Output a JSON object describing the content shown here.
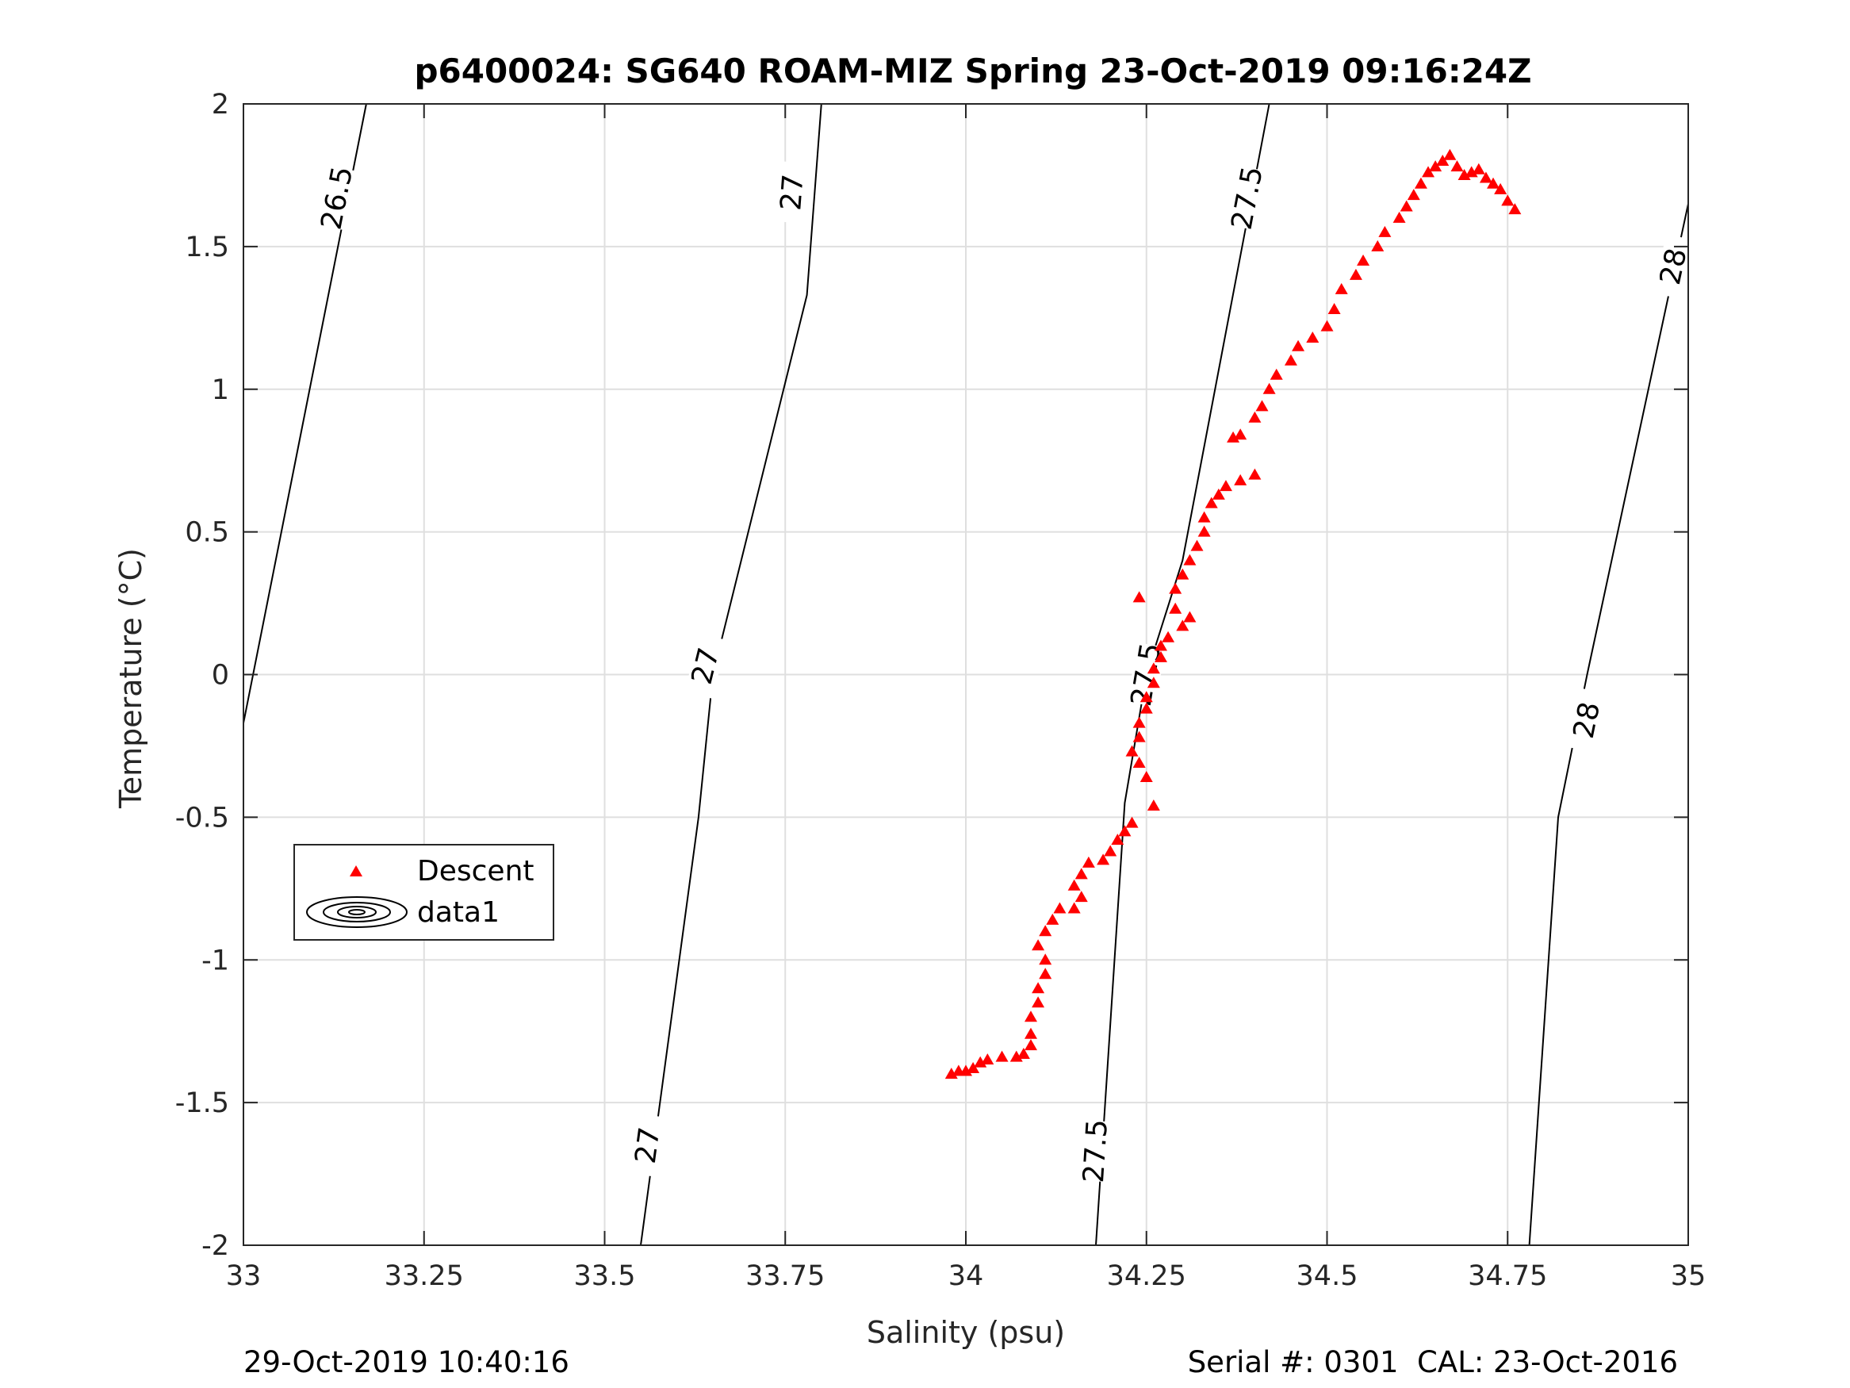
{
  "chart_data": {
    "type": "scatter",
    "title": "p6400024: SG640 ROAM-MIZ Spring 23-Oct-2019 09:16:24Z",
    "xlabel": "Salinity (psu)",
    "ylabel": "Temperature (°C)",
    "xlim": [
      33,
      35
    ],
    "ylim": [
      -2,
      2
    ],
    "x_ticks": [
      33,
      33.25,
      33.5,
      33.75,
      34,
      34.25,
      34.5,
      34.75,
      35
    ],
    "x_tick_labels": [
      "33",
      "33.25",
      "33.5",
      "33.75",
      "34",
      "34.25",
      "34.5",
      "34.75",
      "35"
    ],
    "y_ticks": [
      -2,
      -1.5,
      -1,
      -0.5,
      0,
      0.5,
      1,
      1.5,
      2
    ],
    "y_tick_labels": [
      "-2",
      "-1.5",
      "-1",
      "-0.5",
      "0",
      "0.5",
      "1",
      "1.5",
      "2"
    ],
    "grid": true,
    "legend_position": "lower-left",
    "series": [
      {
        "name": "Descent",
        "marker": "triangle",
        "color": "#ff0000",
        "points": [
          [
            33.98,
            -1.4
          ],
          [
            33.99,
            -1.39
          ],
          [
            34.0,
            -1.39
          ],
          [
            34.01,
            -1.38
          ],
          [
            34.02,
            -1.36
          ],
          [
            34.03,
            -1.35
          ],
          [
            34.05,
            -1.34
          ],
          [
            34.07,
            -1.34
          ],
          [
            34.08,
            -1.33
          ],
          [
            34.09,
            -1.3
          ],
          [
            34.09,
            -1.26
          ],
          [
            34.09,
            -1.2
          ],
          [
            34.1,
            -1.15
          ],
          [
            34.1,
            -1.1
          ],
          [
            34.11,
            -1.05
          ],
          [
            34.11,
            -1.0
          ],
          [
            34.1,
            -0.95
          ],
          [
            34.11,
            -0.9
          ],
          [
            34.12,
            -0.86
          ],
          [
            34.13,
            -0.82
          ],
          [
            34.15,
            -0.82
          ],
          [
            34.16,
            -0.78
          ],
          [
            34.15,
            -0.74
          ],
          [
            34.16,
            -0.7
          ],
          [
            34.17,
            -0.66
          ],
          [
            34.19,
            -0.65
          ],
          [
            34.2,
            -0.62
          ],
          [
            34.21,
            -0.58
          ],
          [
            34.22,
            -0.55
          ],
          [
            34.23,
            -0.52
          ],
          [
            34.26,
            -0.46
          ],
          [
            34.25,
            -0.36
          ],
          [
            34.24,
            -0.31
          ],
          [
            34.23,
            -0.27
          ],
          [
            34.24,
            -0.22
          ],
          [
            34.24,
            -0.17
          ],
          [
            34.25,
            -0.12
          ],
          [
            34.25,
            -0.08
          ],
          [
            34.26,
            -0.03
          ],
          [
            34.26,
            0.02
          ],
          [
            34.27,
            0.06
          ],
          [
            34.27,
            0.1
          ],
          [
            34.28,
            0.13
          ],
          [
            34.3,
            0.17
          ],
          [
            34.31,
            0.2
          ],
          [
            34.24,
            0.27
          ],
          [
            34.29,
            0.23
          ],
          [
            34.29,
            0.3
          ],
          [
            34.3,
            0.35
          ],
          [
            34.31,
            0.4
          ],
          [
            34.32,
            0.45
          ],
          [
            34.33,
            0.5
          ],
          [
            34.33,
            0.55
          ],
          [
            34.34,
            0.6
          ],
          [
            34.35,
            0.63
          ],
          [
            34.36,
            0.66
          ],
          [
            34.38,
            0.68
          ],
          [
            34.4,
            0.7
          ],
          [
            34.37,
            0.83
          ],
          [
            34.38,
            0.84
          ],
          [
            34.4,
            0.9
          ],
          [
            34.41,
            0.94
          ],
          [
            34.42,
            1.0
          ],
          [
            34.43,
            1.05
          ],
          [
            34.45,
            1.1
          ],
          [
            34.46,
            1.15
          ],
          [
            34.48,
            1.18
          ],
          [
            34.5,
            1.22
          ],
          [
            34.51,
            1.28
          ],
          [
            34.52,
            1.35
          ],
          [
            34.54,
            1.4
          ],
          [
            34.55,
            1.45
          ],
          [
            34.57,
            1.5
          ],
          [
            34.58,
            1.55
          ],
          [
            34.6,
            1.6
          ],
          [
            34.61,
            1.64
          ],
          [
            34.62,
            1.68
          ],
          [
            34.63,
            1.72
          ],
          [
            34.64,
            1.76
          ],
          [
            34.65,
            1.78
          ],
          [
            34.66,
            1.8
          ],
          [
            34.67,
            1.82
          ],
          [
            34.68,
            1.78
          ],
          [
            34.69,
            1.75
          ],
          [
            34.7,
            1.76
          ],
          [
            34.71,
            1.77
          ],
          [
            34.72,
            1.74
          ],
          [
            34.73,
            1.72
          ],
          [
            34.74,
            1.7
          ],
          [
            34.75,
            1.66
          ],
          [
            34.76,
            1.63
          ]
        ]
      },
      {
        "name": "data1",
        "type": "contour",
        "color": "#000000",
        "lines": [
          {
            "level": "26.5",
            "points": [
              [
                33.0,
                -0.17
              ],
              [
                33.17,
                2.0
              ]
            ],
            "labels": [
              {
                "x": 33.13,
                "y": 1.67
              }
            ]
          },
          {
            "level": "27",
            "points": [
              [
                33.55,
                -2.0
              ],
              [
                33.63,
                -0.5
              ],
              [
                33.65,
                0.0
              ],
              [
                33.78,
                1.33
              ],
              [
                33.8,
                2.0
              ]
            ],
            "labels": [
              {
                "x": 33.56,
                "y": -1.65
              },
              {
                "x": 33.64,
                "y": 0.03
              },
              {
                "x": 33.76,
                "y": 1.69
              }
            ]
          },
          {
            "level": "27.5",
            "points": [
              [
                34.18,
                -2.0
              ],
              [
                34.22,
                -0.45
              ],
              [
                34.25,
                0.0
              ],
              [
                34.3,
                0.4
              ],
              [
                34.42,
                2.0
              ]
            ],
            "labels": [
              {
                "x": 34.18,
                "y": -1.67
              },
              {
                "x": 34.25,
                "y": 0.0
              },
              {
                "x": 34.39,
                "y": 1.67
              }
            ]
          },
          {
            "level": "28",
            "points": [
              [
                34.78,
                -2.0
              ],
              [
                34.82,
                -0.5
              ],
              [
                34.86,
                0.0
              ],
              [
                35.0,
                1.65
              ]
            ],
            "labels": [
              {
                "x": 34.86,
                "y": -0.16
              },
              {
                "x": 34.98,
                "y": 1.43
              }
            ]
          }
        ]
      }
    ]
  },
  "footer": {
    "timestamp": "29-Oct-2019 10:40:16",
    "serial_cal": "Serial #: 0301  CAL: 23-Oct-2016"
  }
}
